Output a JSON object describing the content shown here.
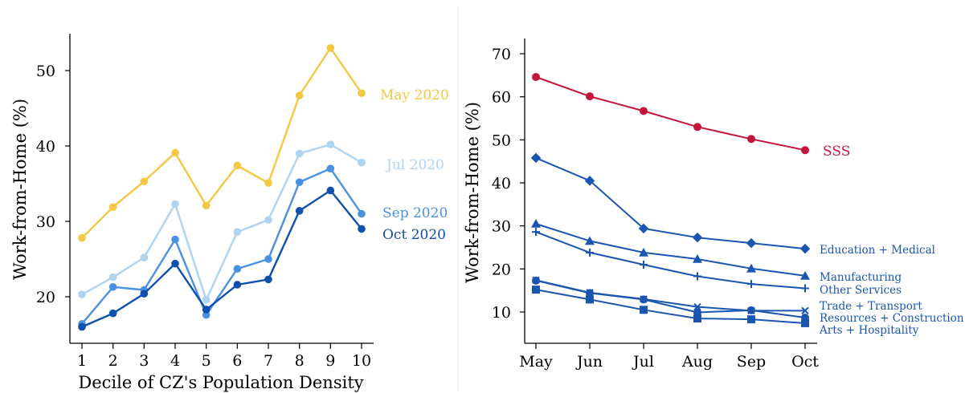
{
  "chart_data": [
    {
      "type": "line",
      "title": "",
      "xlabel": "Decile of CZ's Population Density",
      "ylabel": "Work-from-Home (%)",
      "categories": [
        "1",
        "2",
        "3",
        "4",
        "5",
        "6",
        "7",
        "8",
        "9",
        "10"
      ],
      "ylim": [
        14.5,
        55
      ],
      "yticks": [
        20,
        30,
        40,
        50
      ],
      "grid": false,
      "legend": "inline-right",
      "series": [
        {
          "name": "May 2020",
          "color": "#f4c842",
          "values": [
            27.8,
            31.9,
            35.3,
            39.1,
            32.1,
            37.4,
            35.1,
            46.7,
            53.0,
            47.0
          ]
        },
        {
          "name": "Jul 2020",
          "color": "#aed4f2",
          "values": [
            20.3,
            22.6,
            25.2,
            32.3,
            19.6,
            28.6,
            30.2,
            39.0,
            40.2,
            37.8
          ]
        },
        {
          "name": "Sep 2020",
          "color": "#4a91e2",
          "values": [
            16.4,
            21.3,
            20.9,
            27.6,
            17.6,
            23.7,
            25.0,
            35.2,
            37.0,
            31.0
          ]
        },
        {
          "name": "Oct 2020",
          "color": "#0f4fad",
          "values": [
            16.0,
            17.8,
            20.4,
            24.4,
            18.3,
            21.6,
            22.3,
            31.4,
            34.1,
            29.0
          ]
        }
      ]
    },
    {
      "type": "line",
      "title": "",
      "xlabel": "",
      "ylabel": "Work-from-Home (%)",
      "categories": [
        "May",
        "Jun",
        "Jul",
        "Aug",
        "Sep",
        "Oct"
      ],
      "ylim": [
        4.5,
        73
      ],
      "yticks": [
        10,
        20,
        30,
        40,
        50,
        60,
        70
      ],
      "grid": false,
      "legend": "inline-right",
      "series": [
        {
          "name": "SSS",
          "color": "#c41439",
          "marker": "circle",
          "values": [
            64.6,
            60.1,
            56.7,
            53.0,
            50.2,
            47.6
          ]
        },
        {
          "name": "Education + Medical",
          "color": "#1a56b0",
          "marker": "diamond",
          "values": [
            45.8,
            40.5,
            29.4,
            27.3,
            26.0,
            24.7
          ]
        },
        {
          "name": "Manufacturing",
          "color": "#1a56b0",
          "marker": "triangle",
          "values": [
            30.5,
            26.5,
            23.8,
            22.3,
            20.1,
            18.4
          ]
        },
        {
          "name": "Other Services",
          "color": "#1a56b0",
          "marker": "plus",
          "values": [
            28.6,
            23.8,
            21.0,
            18.3,
            16.5,
            15.5
          ]
        },
        {
          "name": "Trade + Transport",
          "color": "#1a56b0",
          "marker": "x",
          "values": [
            17.4,
            14.5,
            13.0,
            11.2,
            10.3,
            10.3
          ]
        },
        {
          "name": "Resources + Construction",
          "color": "#1a56b0",
          "marker": "circle",
          "values": [
            17.3,
            14.4,
            12.9,
            9.9,
            10.4,
            8.7
          ]
        },
        {
          "name": "Arts + Hospitality",
          "color": "#1a56b0",
          "marker": "square",
          "values": [
            15.2,
            12.9,
            10.5,
            8.5,
            8.3,
            7.4
          ]
        }
      ]
    }
  ]
}
